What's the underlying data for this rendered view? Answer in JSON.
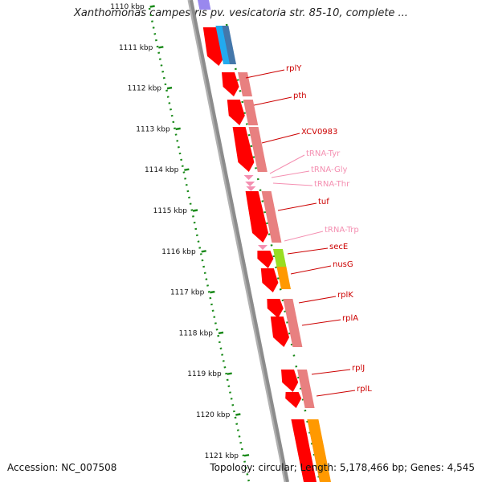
{
  "title": "Xanthomonas campestris pv. vesicatoria str. 85-10, complete ...",
  "footer": {
    "accession": "Accession: NC_007508",
    "topology": "Topology: circular; Length: 5,178,466 bp; Genes: 4,545"
  },
  "scale": {
    "ticks": [
      "1110 kbp",
      "1111 kbp",
      "1112 kbp",
      "1113 kbp",
      "1114 kbp",
      "1115 kbp",
      "1116 kbp",
      "1117 kbp",
      "1118 kbp",
      "1119 kbp",
      "1120 kbp",
      "1121 kbp"
    ]
  },
  "genes": [
    {
      "label": "rplY",
      "color": "#cc0000"
    },
    {
      "label": "pth",
      "color": "#cc0000"
    },
    {
      "label": "XCV0983",
      "color": "#cc0000"
    },
    {
      "label": "tRNA-Tyr",
      "color": "#f48fb1"
    },
    {
      "label": "tRNA-Gly",
      "color": "#f48fb1"
    },
    {
      "label": "tRNA-Thr",
      "color": "#f48fb1"
    },
    {
      "label": "tuf",
      "color": "#cc0000"
    },
    {
      "label": "tRNA-Trp",
      "color": "#f48fb1"
    },
    {
      "label": "secE",
      "color": "#cc0000"
    },
    {
      "label": "nusG",
      "color": "#cc0000"
    },
    {
      "label": "rplK",
      "color": "#cc0000"
    },
    {
      "label": "rplA",
      "color": "#cc0000"
    },
    {
      "label": "rplJ",
      "color": "#cc0000"
    },
    {
      "label": "rplL",
      "color": "#cc0000"
    }
  ],
  "colors": {
    "backbone": "#8c8c8c",
    "scale_dots": "#1a8a1a",
    "cds": "#ff0000",
    "cds_track2": "#e88080",
    "trna": "#f48fb1",
    "lime": "#99dd22",
    "orange": "#ff9900",
    "cyan": "#22aaee",
    "steel": "#4477aa",
    "lavender": "#9988ee"
  }
}
